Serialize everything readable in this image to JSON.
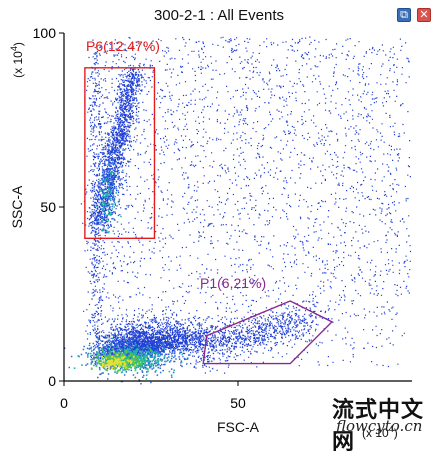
{
  "window": {
    "title": "300-2-1 : All Events",
    "restore_icon": "restore-icon",
    "close_icon": "close-icon"
  },
  "chart_data": {
    "type": "scatter",
    "title": "300-2-1 : All Events",
    "xlabel": "FSC-A",
    "ylabel": "SSC-A",
    "x_multiplier": "(x 10^4)",
    "y_multiplier": "(x 10^4)",
    "xlim": [
      0,
      100
    ],
    "ylim": [
      0,
      100
    ],
    "xticks": [
      "0",
      "50"
    ],
    "yticks": [
      "0",
      "50",
      "100"
    ],
    "grid": false,
    "point_color": "#1f3fd6",
    "density_colors": [
      "#2e6ad8",
      "#1fb6a8",
      "#57c84a",
      "#e8e03a"
    ],
    "gates": [
      {
        "name": "P6",
        "label": "P6(12.47%)",
        "percent": 12.47,
        "shape": "rectangle",
        "color": "#e01c1c",
        "vertices": [
          [
            6,
            41
          ],
          [
            26,
            41
          ],
          [
            26,
            90
          ],
          [
            6,
            90
          ]
        ]
      },
      {
        "name": "P1",
        "label": "P1(6.21%)",
        "percent": 6.21,
        "shape": "polygon",
        "color": "#8a2a8a",
        "vertices": [
          [
            40,
            5
          ],
          [
            65,
            5
          ],
          [
            77,
            17
          ],
          [
            65,
            23
          ],
          [
            41,
            13
          ]
        ]
      }
    ]
  },
  "watermark": {
    "chinese": "流式中文网",
    "site": "flowcyto.cn"
  }
}
